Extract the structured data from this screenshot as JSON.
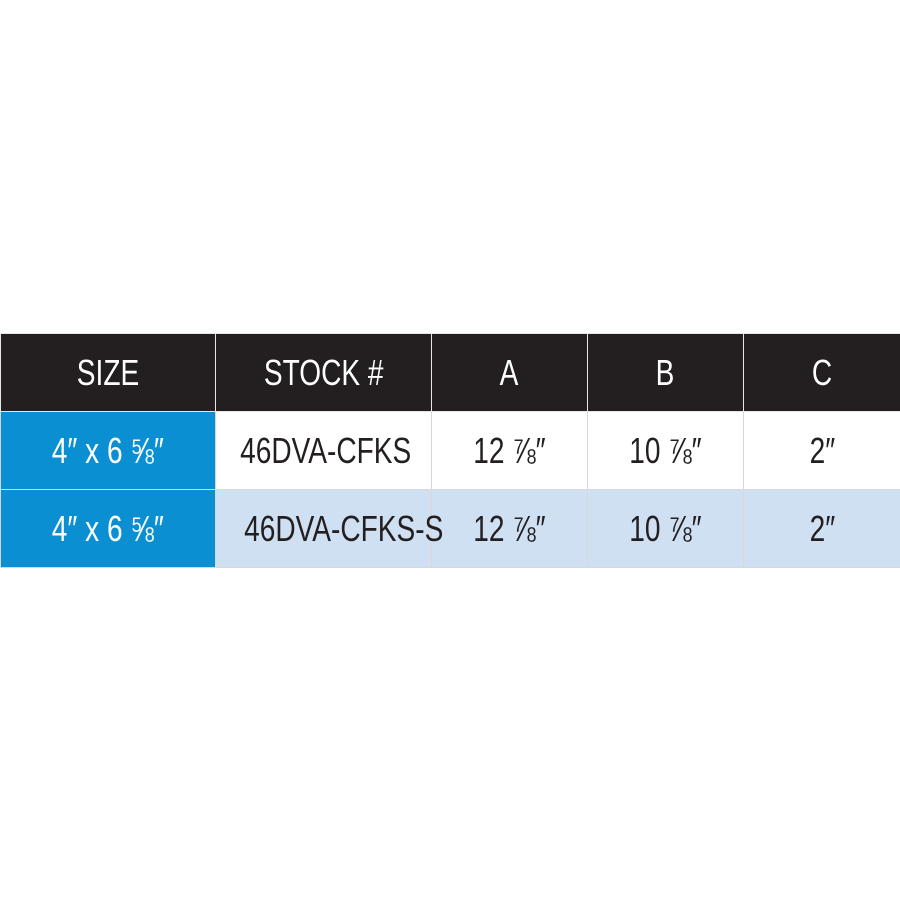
{
  "table": {
    "header": [
      "SIZE",
      "STOCK #",
      "A",
      "B",
      "C"
    ],
    "rows": [
      [
        "4″ x 6 ⅝″",
        "46DVA-CFKS",
        "12 ⅞″",
        "10 ⅞″",
        "2″"
      ],
      [
        "4″ x 6 ⅝″",
        "46DVA-CFKS-S",
        "12 ⅞″",
        "10 ⅞″",
        "2″"
      ]
    ]
  }
}
